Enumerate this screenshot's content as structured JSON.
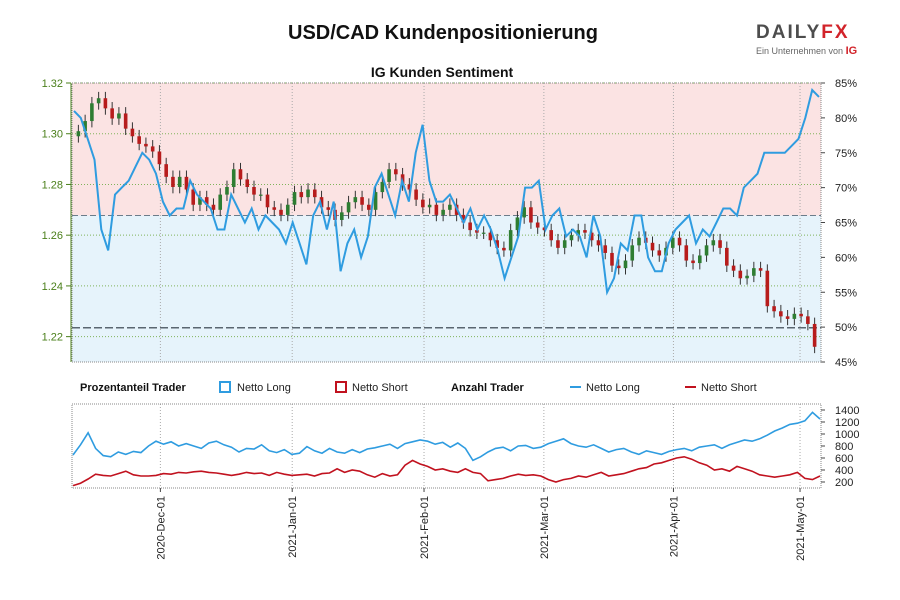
{
  "header": {
    "title": "USD/CAD Kundenpositionierung",
    "logo_brand_a": "DAILY",
    "logo_brand_b": "FX",
    "logo_tagline": "Ein Unternehmen von",
    "logo_tagline_mark": "IG"
  },
  "colors": {
    "long": "#2f9ce0",
    "short": "#c1121f",
    "price_axis": "#4a7f1a",
    "long_zone_fill": "#e6f3fb",
    "short_zone_fill": "#fbe3e3",
    "candle_up": "#2e7d32",
    "candle_down": "#b71c1c"
  },
  "legend": {
    "group1_title": "Prozentanteil Trader",
    "long_label": "Netto Long",
    "short_label": "Netto Short",
    "group2_title": "Anzahl Trader"
  },
  "chart_data": [
    {
      "type": "line",
      "title": "IG Kunden Sentiment",
      "description_kind": "price candlesticks (left axis) with net-long percentage line (right axis)",
      "y_left_ticks": [
        "1.22",
        "1.24",
        "1.26",
        "1.28",
        "1.30",
        "1.32"
      ],
      "y_left_range": [
        1.21,
        1.32
      ],
      "y_right_ticks": [
        "45%",
        "50%",
        "55%",
        "60%",
        "65%",
        "70%",
        "75%",
        "80%",
        "85%"
      ],
      "y_right_range": [
        45,
        85
      ],
      "reference_lines": {
        "price": 1.2235,
        "net_long_pct": 66
      },
      "x_tick_labels": [
        "2020-Dec-01",
        "2021-Jan-01",
        "2021-Feb-01",
        "2021-Mar-01",
        "2021-Apr-01",
        "2021-May-01"
      ],
      "price_series": [
        1.301,
        1.305,
        1.312,
        1.314,
        1.31,
        1.306,
        1.308,
        1.302,
        1.299,
        1.296,
        1.295,
        1.293,
        1.288,
        1.283,
        1.279,
        1.283,
        1.278,
        1.272,
        1.275,
        1.272,
        1.27,
        1.276,
        1.279,
        1.286,
        1.282,
        1.279,
        1.276,
        1.276,
        1.271,
        1.27,
        1.268,
        1.272,
        1.277,
        1.275,
        1.278,
        1.275,
        1.271,
        1.27,
        1.266,
        1.269,
        1.273,
        1.275,
        1.272,
        1.27,
        1.277,
        1.281,
        1.286,
        1.284,
        1.28,
        1.278,
        1.274,
        1.271,
        1.272,
        1.268,
        1.27,
        1.272,
        1.268,
        1.265,
        1.262,
        1.261,
        1.261,
        1.258,
        1.255,
        1.254,
        1.262,
        1.267,
        1.271,
        1.265,
        1.263,
        1.262,
        1.258,
        1.255,
        1.258,
        1.26,
        1.262,
        1.261,
        1.258,
        1.256,
        1.253,
        1.248,
        1.247,
        1.25,
        1.256,
        1.259,
        1.257,
        1.254,
        1.252,
        1.255,
        1.259,
        1.256,
        1.25,
        1.249,
        1.252,
        1.256,
        1.258,
        1.255,
        1.248,
        1.246,
        1.243,
        1.244,
        1.247,
        1.246,
        1.232,
        1.23,
        1.228,
        1.227,
        1.229,
        1.228,
        1.225,
        1.216
      ],
      "net_long_pct": [
        81,
        80,
        77,
        74,
        64,
        61,
        69,
        70,
        71,
        73,
        75,
        74,
        72,
        68,
        66,
        67,
        67,
        71,
        69,
        68,
        67,
        64,
        64,
        69,
        67,
        65,
        67,
        64,
        66,
        65,
        64,
        62,
        65,
        62,
        59,
        66,
        68,
        64,
        68,
        58,
        62,
        64,
        60,
        63,
        70,
        72,
        69,
        66,
        71,
        68,
        75,
        79,
        71,
        68,
        68,
        69,
        67,
        65,
        67,
        64,
        66,
        64,
        61,
        57,
        60,
        63,
        70,
        70,
        71,
        64,
        66,
        67,
        63,
        64,
        63,
        60,
        66,
        63,
        55,
        57,
        62,
        61,
        66,
        66,
        60,
        58,
        58,
        62,
        64,
        65,
        66,
        62,
        64,
        63,
        65,
        67,
        67,
        66,
        70,
        71,
        72,
        75,
        75,
        75,
        75,
        76,
        77,
        80,
        84,
        83
      ]
    },
    {
      "type": "line",
      "title": "",
      "description_kind": "trader counts",
      "y_ticks": [
        "200",
        "400",
        "600",
        "800",
        "1000",
        "1200",
        "1400"
      ],
      "y_range": [
        100,
        1500
      ],
      "series": [
        {
          "name": "Netto Long",
          "values": [
            650,
            820,
            1020,
            760,
            640,
            620,
            700,
            660,
            710,
            690,
            800,
            880,
            830,
            870,
            800,
            840,
            800,
            760,
            850,
            880,
            820,
            780,
            700,
            760,
            750,
            820,
            720,
            690,
            740,
            660,
            680,
            790,
            720,
            680,
            760,
            700,
            680,
            740,
            690,
            750,
            770,
            800,
            830,
            760,
            840,
            870,
            900,
            880,
            830,
            860,
            780,
            850,
            760,
            560,
            620,
            700,
            760,
            780,
            720,
            800,
            810,
            760,
            780,
            840,
            880,
            920,
            840,
            800,
            780,
            820,
            760,
            700,
            740,
            760,
            700,
            660,
            720,
            690,
            660,
            710,
            740,
            760,
            720,
            780,
            800,
            820,
            760,
            820,
            860,
            900,
            880,
            920,
            980,
            1050,
            1100,
            1160,
            1180,
            1220,
            1360,
            1250
          ]
        },
        {
          "name": "Netto Short",
          "values": [
            140,
            180,
            250,
            330,
            310,
            300,
            340,
            380,
            320,
            300,
            300,
            310,
            340,
            330,
            360,
            350,
            370,
            380,
            360,
            350,
            330,
            310,
            330,
            360,
            340,
            350,
            310,
            360,
            330,
            310,
            320,
            330,
            300,
            340,
            350,
            420,
            360,
            400,
            380,
            320,
            280,
            340,
            300,
            320,
            480,
            560,
            500,
            460,
            400,
            420,
            380,
            360,
            420,
            360,
            340,
            220,
            240,
            260,
            300,
            330,
            310,
            320,
            300,
            240,
            200,
            240,
            260,
            300,
            280,
            320,
            360,
            300,
            320,
            340,
            380,
            420,
            440,
            500,
            520,
            560,
            600,
            620,
            580,
            520,
            480,
            400,
            420,
            380,
            460,
            420,
            380,
            320,
            300,
            280,
            300,
            320,
            360,
            260,
            240,
            300
          ]
        }
      ]
    }
  ]
}
